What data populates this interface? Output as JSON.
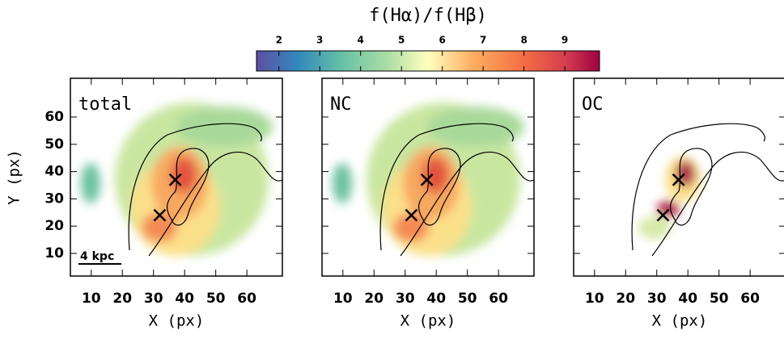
{
  "chart_data": [
    {
      "type": "colorbar",
      "title": "f(Hα)/f(Hβ)",
      "xlim": [
        1.45,
        9.85
      ],
      "xticks": [
        2,
        3,
        4,
        5,
        6,
        7,
        8,
        9
      ]
    },
    {
      "type": "map",
      "label": "total",
      "xlabel": "X (px)",
      "ylabel": "Y (px)",
      "ytick_labels": true,
      "scale_bar": "4 kpc",
      "xlim": [
        3.3,
        71.4
      ],
      "ylim": [
        1.7,
        74.2
      ],
      "xticks": [
        10,
        20,
        30,
        40,
        50,
        60
      ],
      "yticks": [
        10,
        20,
        30,
        40,
        50,
        60
      ],
      "markers": {
        "x": [
          37,
          32
        ],
        "y": [
          37,
          24
        ]
      }
    },
    {
      "type": "map",
      "label": "NC",
      "xlabel": "X (px)",
      "ytick_labels": false,
      "xlim": [
        3.3,
        71.4
      ],
      "ylim": [
        1.7,
        74.2
      ],
      "xticks": [
        10,
        20,
        30,
        40,
        50,
        60
      ],
      "yticks": [
        10,
        20,
        30,
        40,
        50,
        60
      ],
      "markers": {
        "x": [
          37,
          32
        ],
        "y": [
          37,
          24
        ]
      }
    },
    {
      "type": "map",
      "label": "OC",
      "xlabel": "X (px)",
      "ytick_labels": false,
      "xlim": [
        3.3,
        71.4
      ],
      "ylim": [
        1.7,
        74.2
      ],
      "xticks": [
        10,
        20,
        30,
        40,
        50,
        60
      ],
      "yticks": [
        10,
        20,
        30,
        40,
        50,
        60
      ],
      "markers": {
        "x": [
          37,
          32
        ],
        "y": [
          37,
          24
        ]
      }
    }
  ]
}
